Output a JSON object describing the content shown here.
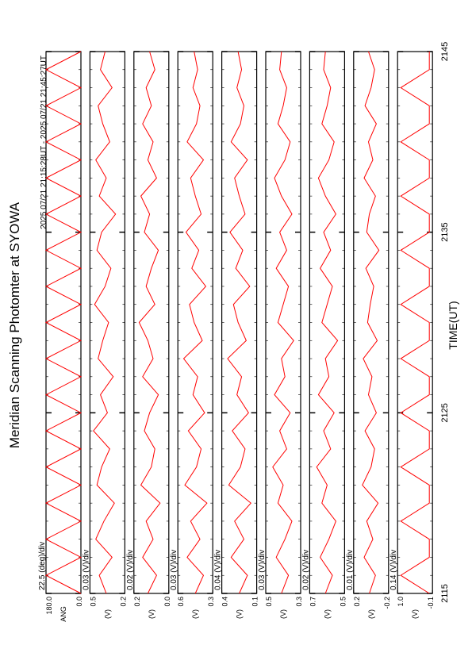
{
  "chart_data": {
    "type": "line",
    "title": "Meridian Scanning Photomter at SYOWA",
    "subtitle": "2025 07/21 21:15:28UT - 2025 07/21 21:45:27UT",
    "xlabel": "TIME(UT)",
    "color": "#ff0000",
    "x": [
      2115,
      2116,
      2117,
      2118,
      2119,
      2120,
      2121,
      2122,
      2123,
      2124,
      2125,
      2126,
      2127,
      2128,
      2129,
      2130,
      2131,
      2132,
      2133,
      2134,
      2135,
      2136,
      2137,
      2138,
      2139,
      2140,
      2141,
      2142,
      2143,
      2144,
      2145
    ],
    "xlim": [
      2115,
      2145
    ],
    "xticks": [
      2115,
      2125,
      2135,
      2145
    ],
    "panels": [
      {
        "name": "ANG",
        "scale": "22.5 (deg)/div",
        "ylim": [
          0,
          180
        ],
        "yticks": [
          {
            "value": 0,
            "label": "0.0"
          },
          {
            "value": 180,
            "label": "180.0"
          }
        ],
        "values": [
          0,
          180,
          0,
          180,
          0,
          180,
          0,
          180,
          0,
          180,
          0,
          180,
          0,
          180,
          0,
          180,
          0,
          180,
          0,
          180,
          0,
          180,
          0,
          180,
          0,
          180,
          0,
          180,
          0,
          180,
          0
        ]
      },
      {
        "name": "(V)",
        "scale": "0.03 (V)/div",
        "ylim": [
          0.2,
          0.5
        ],
        "yticks": [
          0.2,
          0.5
        ],
        "values": [
          0.36,
          0.42,
          0.31,
          0.45,
          0.38,
          0.29,
          0.44,
          0.4,
          0.33,
          0.47,
          0.35,
          0.41,
          0.3,
          0.43,
          0.39,
          0.34,
          0.46,
          0.37,
          0.32,
          0.44,
          0.4,
          0.28,
          0.42,
          0.36,
          0.45,
          0.33,
          0.39,
          0.43,
          0.31,
          0.41,
          0.37
        ]
      },
      {
        "name": "(V)",
        "scale": "0.02 (V)/div",
        "ylim": [
          0,
          0.2
        ],
        "yticks": [
          {
            "value": 0,
            "label": "0.0"
          },
          0.2
        ],
        "values": [
          0.12,
          0.07,
          0.15,
          0.09,
          0.13,
          0.05,
          0.16,
          0.1,
          0.08,
          0.14,
          0.11,
          0.06,
          0.15,
          0.09,
          0.12,
          0.17,
          0.08,
          0.13,
          0.1,
          0.06,
          0.14,
          0.11,
          0.16,
          0.07,
          0.12,
          0.09,
          0.15,
          0.1,
          0.13,
          0.08,
          0.11
        ]
      },
      {
        "name": "(V)",
        "scale": "0.03 (V)/div",
        "ylim": [
          0.3,
          0.6
        ],
        "yticks": [
          0.3,
          0.6
        ],
        "values": [
          0.45,
          0.38,
          0.52,
          0.41,
          0.49,
          0.35,
          0.54,
          0.44,
          0.4,
          0.51,
          0.37,
          0.47,
          0.43,
          0.55,
          0.39,
          0.46,
          0.5,
          0.36,
          0.48,
          0.42,
          0.53,
          0.4,
          0.45,
          0.49,
          0.38,
          0.52,
          0.44,
          0.41,
          0.47,
          0.43,
          0.46
        ]
      },
      {
        "name": "(V)",
        "scale": "0.04 (V)/div",
        "ylim": [
          0.1,
          0.4
        ],
        "yticks": [
          0.1,
          0.4
        ],
        "values": [
          0.25,
          0.18,
          0.32,
          0.21,
          0.29,
          0.15,
          0.34,
          0.24,
          0.2,
          0.31,
          0.17,
          0.27,
          0.23,
          0.35,
          0.19,
          0.26,
          0.3,
          0.16,
          0.28,
          0.22,
          0.33,
          0.2,
          0.25,
          0.29,
          0.18,
          0.32,
          0.24,
          0.21,
          0.27,
          0.23,
          0.26
        ]
      },
      {
        "name": "(V)",
        "scale": "0.03 (V)/div",
        "ylim": [
          0.3,
          0.5
        ],
        "yticks": [
          0.3,
          0.5
        ],
        "values": [
          0.41,
          0.37,
          0.44,
          0.39,
          0.35,
          0.43,
          0.4,
          0.46,
          0.38,
          0.42,
          0.36,
          0.45,
          0.39,
          0.41,
          0.34,
          0.43,
          0.4,
          0.37,
          0.44,
          0.38,
          0.42,
          0.35,
          0.41,
          0.45,
          0.39,
          0.36,
          0.43,
          0.4,
          0.38,
          0.42,
          0.41
        ]
      },
      {
        "name": "(V)",
        "scale": "0.02 (V)/div",
        "ylim": [
          0.5,
          0.7
        ],
        "yticks": [
          0.5,
          0.7
        ],
        "values": [
          0.61,
          0.57,
          0.64,
          0.59,
          0.55,
          0.63,
          0.6,
          0.66,
          0.58,
          0.62,
          0.56,
          0.65,
          0.59,
          0.61,
          0.54,
          0.63,
          0.6,
          0.57,
          0.64,
          0.58,
          0.62,
          0.55,
          0.61,
          0.65,
          0.59,
          0.56,
          0.63,
          0.6,
          0.58,
          0.62,
          0.61
        ]
      },
      {
        "name": "(V)",
        "scale": "0.01 (V)/div",
        "ylim": [
          -0.2,
          0.2
        ],
        "yticks": [
          -0.2,
          0.2
        ],
        "values": [
          0.02,
          -0.05,
          0.08,
          -0.02,
          0.05,
          -0.08,
          0.1,
          0.0,
          -0.04,
          0.07,
          -0.06,
          0.03,
          -0.01,
          0.09,
          -0.07,
          0.04,
          0.01,
          -0.03,
          0.06,
          -0.09,
          0.05,
          0.02,
          -0.05,
          0.08,
          -0.02,
          0.03,
          -0.06,
          0.07,
          0.0,
          -0.04,
          0.03
        ]
      },
      {
        "name": "(V)",
        "scale": "0.14 (V)/div",
        "ylim": [
          -0.1,
          1
        ],
        "yticks": [
          -0.1,
          {
            "value": 1,
            "label": "1.0"
          }
        ],
        "values": [
          0,
          0.9,
          0,
          0,
          0.9,
          0,
          0,
          0.9,
          0,
          0,
          0.9,
          0,
          0,
          0.9,
          0,
          0,
          0.9,
          0,
          0,
          0.9,
          0,
          0,
          0.9,
          0,
          0,
          0.9,
          0,
          0,
          0.9,
          0,
          0
        ]
      }
    ]
  }
}
